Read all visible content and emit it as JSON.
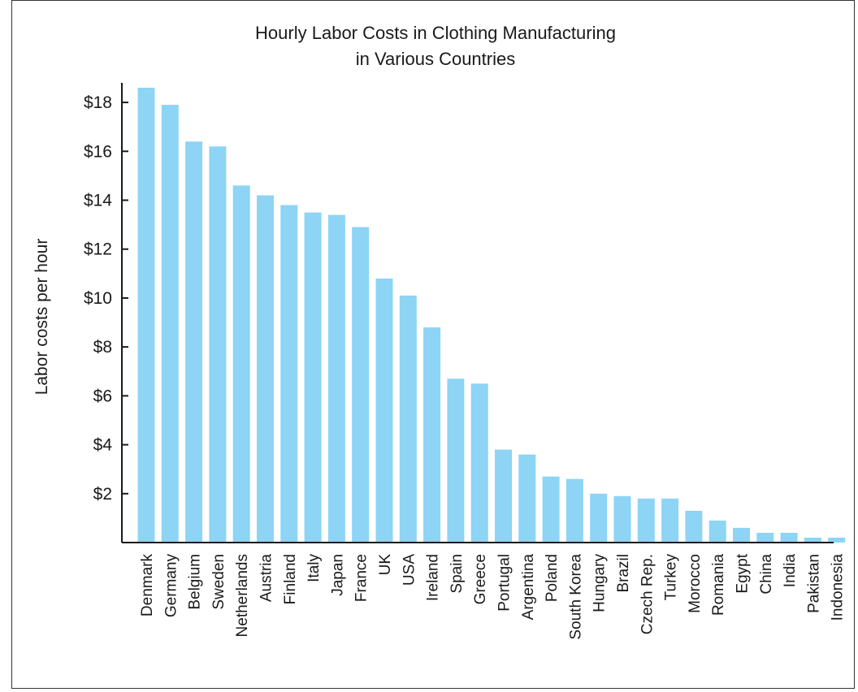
{
  "chart_data": {
    "type": "bar",
    "title_lines": [
      "Hourly Labor Costs in Clothing Manufacturing",
      "in Various Countries"
    ],
    "xlabel": "",
    "ylabel": "Labor costs per hour",
    "ylim": [
      0,
      18.8
    ],
    "yticks": [
      2,
      4,
      6,
      8,
      10,
      12,
      14,
      16,
      18
    ],
    "ytick_labels": [
      "$2",
      "$4",
      "$6",
      "$8",
      "$10",
      "$12",
      "$14",
      "$16",
      "$18"
    ],
    "grid": false,
    "bar_color": "#8dd4f5",
    "categories": [
      "Denmark",
      "Germany",
      "Belgium",
      "Sweden",
      "Netherlands",
      "Austria",
      "Finland",
      "Italy",
      "Japan",
      "France",
      "UK",
      "USA",
      "Ireland",
      "Spain",
      "Greece",
      "Portugal",
      "Argentina",
      "Poland",
      "South Korea",
      "Hungary",
      "Brazil",
      "Czech Rep.",
      "Turkey",
      "Morocco",
      "Romania",
      "Egypt",
      "China",
      "India",
      "Pakistan",
      "Indonesia"
    ],
    "values": [
      18.6,
      17.9,
      16.4,
      16.2,
      14.6,
      14.2,
      13.8,
      13.5,
      13.4,
      12.9,
      10.8,
      10.1,
      8.8,
      6.7,
      6.5,
      3.8,
      3.6,
      2.7,
      2.6,
      2.0,
      1.9,
      1.8,
      1.8,
      1.3,
      0.9,
      0.6,
      0.4,
      0.4,
      0.2,
      0.2
    ]
  }
}
